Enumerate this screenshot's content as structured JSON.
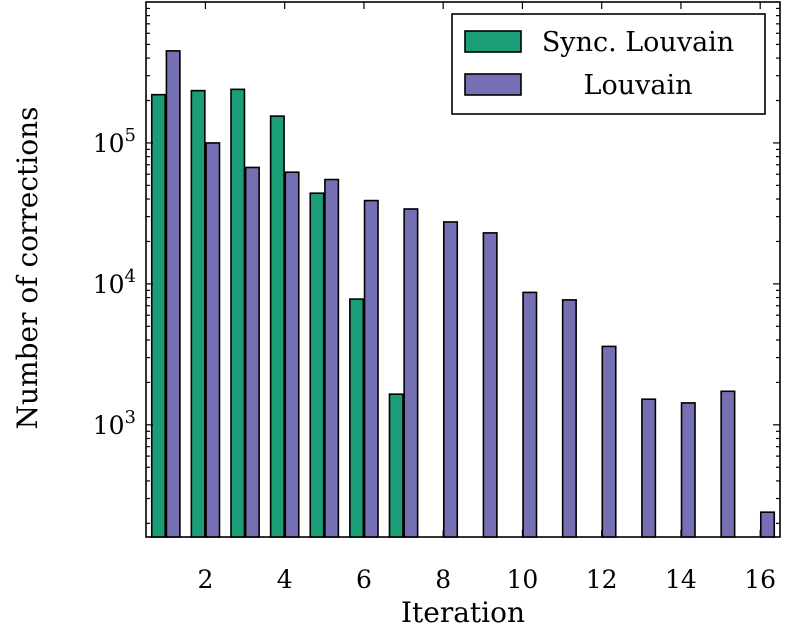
{
  "chart_data": {
    "type": "bar",
    "xlabel": "Iteration",
    "ylabel": "Number of corrections",
    "y_scale": "log",
    "grid": false,
    "legend_position": "top-right",
    "x_ticks": [
      "2",
      "4",
      "6",
      "8",
      "10",
      "12",
      "14",
      "16"
    ],
    "y_ticks": [
      {
        "value": 1000,
        "base": "10",
        "exp": "3"
      },
      {
        "value": 10000,
        "base": "10",
        "exp": "4"
      },
      {
        "value": 100000,
        "base": "10",
        "exp": "5"
      }
    ],
    "x": [
      1,
      2,
      3,
      4,
      5,
      6,
      7,
      8,
      9,
      10,
      11,
      12,
      13,
      14,
      15,
      16
    ],
    "series": [
      {
        "name": "Sync. Louvain",
        "color": "#1b9e77",
        "values": [
          220000,
          235000,
          240000,
          155000,
          44000,
          7800,
          1650,
          null,
          null,
          null,
          null,
          null,
          null,
          null,
          null,
          null
        ]
      },
      {
        "name": "Louvain",
        "color": "#7570b3",
        "values": [
          450000,
          100000,
          67000,
          62000,
          55000,
          39000,
          34000,
          27500,
          23000,
          8700,
          7700,
          3600,
          1520,
          1430,
          1730,
          240
        ]
      }
    ]
  }
}
